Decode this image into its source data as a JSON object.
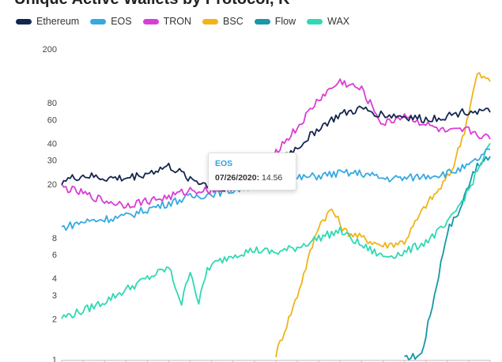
{
  "title": "Unique Active Wallets by Protocol, K",
  "colors": {
    "Ethereum": "#14254f",
    "EOS": "#36a9e1",
    "TRON": "#d83ed6",
    "BSC": "#f0b418",
    "Flow": "#1797a8",
    "WAX": "#2fd9b3"
  },
  "tooltip": {
    "series": "EOS",
    "date": "07/26/2020",
    "value": "14.56"
  },
  "chart_data": {
    "type": "line",
    "title": "Unique Active Wallets by Protocol, K",
    "xlabel": "",
    "ylabel": "",
    "yscale": "log",
    "ylim": [
      1,
      200
    ],
    "ytick_labels": [
      "1",
      "2",
      "3",
      "4",
      "6",
      "8",
      "20",
      "30",
      "40",
      "60",
      "80",
      "200"
    ],
    "ytick_values": [
      1,
      2,
      3,
      4,
      6,
      8,
      20,
      30,
      40,
      60,
      80,
      200
    ],
    "grid": false,
    "legend_position": "top-left",
    "x_index_range": [
      0,
      100
    ],
    "series": [
      {
        "name": "Ethereum",
        "x": [
          0,
          5,
          10,
          15,
          20,
          25,
          30,
          35,
          40,
          45,
          50,
          55,
          60,
          65,
          70,
          75,
          80,
          85,
          90,
          95,
          100
        ],
        "values": [
          21,
          23,
          22,
          22,
          24,
          27,
          22,
          19,
          19,
          21,
          30,
          37,
          52,
          65,
          72,
          65,
          63,
          60,
          64,
          70,
          68
        ]
      },
      {
        "name": "EOS",
        "x": [
          0,
          5,
          10,
          15,
          20,
          25,
          30,
          35,
          40,
          45,
          50,
          55,
          60,
          65,
          70,
          75,
          80,
          85,
          90,
          95,
          100
        ],
        "values": [
          9.5,
          10.5,
          11,
          11.5,
          13,
          14.5,
          16,
          17,
          18,
          19.5,
          21,
          22,
          23,
          24,
          24,
          22,
          22,
          23,
          24,
          27,
          36
        ]
      },
      {
        "name": "TRON",
        "x": [
          0,
          5,
          10,
          15,
          20,
          25,
          30,
          35,
          40,
          45,
          50,
          55,
          60,
          65,
          70,
          75,
          80,
          85,
          90,
          95,
          100
        ],
        "values": [
          19,
          17,
          15,
          14,
          15,
          16,
          18,
          18,
          19,
          20,
          35,
          52,
          85,
          115,
          100,
          55,
          65,
          55,
          48,
          50,
          43
        ]
      },
      {
        "name": "BSC",
        "x": [
          50,
          55,
          60,
          63,
          66,
          70,
          75,
          80,
          85,
          88,
          91,
          94,
          97,
          100
        ],
        "values": [
          1.1,
          3,
          10,
          13,
          9,
          8,
          7,
          7.5,
          14,
          18,
          25,
          50,
          130,
          115
        ]
      },
      {
        "name": "Flow",
        "x": [
          80,
          84,
          87,
          90,
          93,
          96,
          100
        ],
        "values": [
          1,
          1.1,
          3,
          9,
          13,
          25,
          32
        ]
      },
      {
        "name": "WAX",
        "x": [
          0,
          5,
          10,
          15,
          20,
          25,
          28,
          30,
          32,
          34,
          36,
          40,
          45,
          50,
          55,
          60,
          65,
          70,
          75,
          80,
          85,
          90,
          95,
          100
        ],
        "values": [
          2.05,
          2.3,
          2.7,
          3.3,
          4,
          4.8,
          2.6,
          4.7,
          2.6,
          4.7,
          5.2,
          6,
          6.5,
          6.2,
          6.8,
          8,
          9,
          7,
          5.8,
          6.2,
          7.5,
          10,
          18,
          40
        ]
      }
    ]
  }
}
